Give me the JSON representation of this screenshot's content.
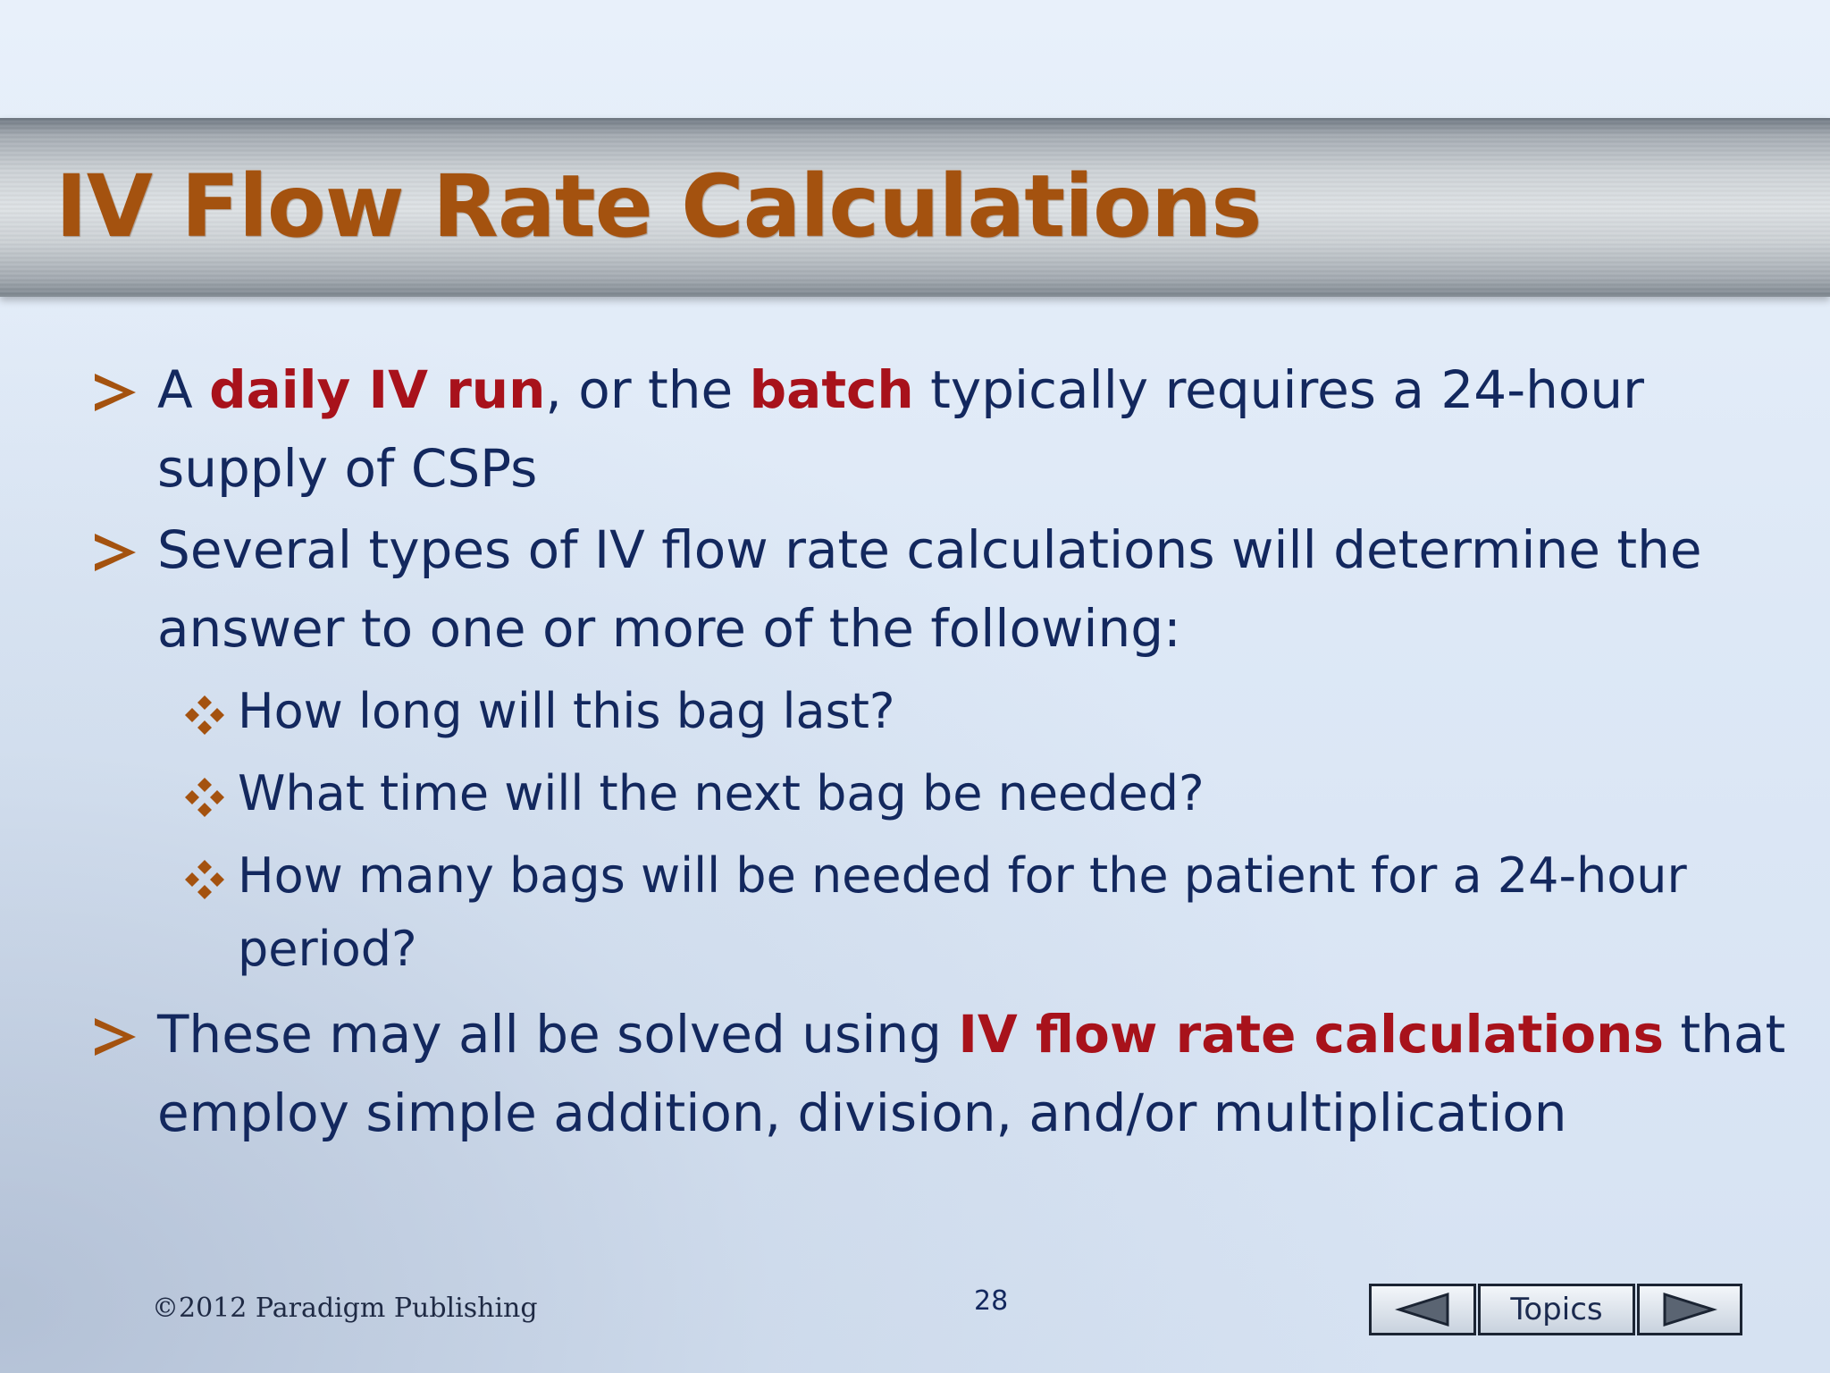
{
  "slide": {
    "title": "IV Flow Rate Calculations",
    "bullets": [
      {
        "level": 1,
        "segments": [
          {
            "text": "A ",
            "em": false
          },
          {
            "text": "daily IV run",
            "em": true
          },
          {
            "text": ", or the ",
            "em": false
          },
          {
            "text": "batch",
            "em": true
          },
          {
            "text": " typically requires a 24-hour supply of CSPs",
            "em": false
          }
        ]
      },
      {
        "level": 1,
        "segments": [
          {
            "text": "Several types of IV flow rate calculations will determine the answer to one or more of the following:",
            "em": false
          }
        ]
      },
      {
        "level": 2,
        "segments": [
          {
            "text": "How long will this bag last?",
            "em": false
          }
        ]
      },
      {
        "level": 2,
        "segments": [
          {
            "text": "What time will the next bag be needed?",
            "em": false
          }
        ]
      },
      {
        "level": 2,
        "segments": [
          {
            "text": "How many bags will be needed for the patient for a 24-hour period?",
            "em": false
          }
        ]
      },
      {
        "level": 1,
        "segments": [
          {
            "text": "These may all be solved using ",
            "em": false
          },
          {
            "text": "IV flow rate calculations",
            "em": true
          },
          {
            "text": " that employ simple addition, division, and/or multiplication",
            "em": false
          }
        ]
      }
    ],
    "footer": {
      "copyright": "©2012 Paradigm Publishing",
      "page_number": "28"
    },
    "nav": {
      "prev_icon": "triangle-left-icon",
      "topics_label": "Topics",
      "next_icon": "triangle-right-icon"
    },
    "colors": {
      "title": "#a4520f",
      "body_text": "#13285e",
      "highlight": "#a8121b",
      "bullet_marker": "#a4520f"
    }
  }
}
